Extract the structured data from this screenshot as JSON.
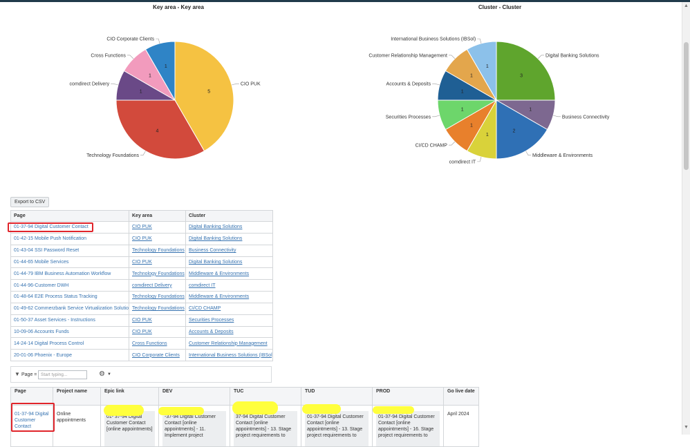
{
  "chart_data": [
    {
      "type": "pie",
      "title": "Key area - Key area",
      "categories": [
        "CIO PUK",
        "Technology Foundations",
        "comdirect Delivery",
        "Cross Functions",
        "CIO Corporate Clients"
      ],
      "values": [
        5,
        4,
        1,
        1,
        1
      ],
      "colors": [
        "#f5c242",
        "#d24a3c",
        "#6a4987",
        "#f29bbd",
        "#2f84c6"
      ]
    },
    {
      "type": "pie",
      "title": "Cluster - Cluster",
      "categories": [
        "Digital Banking Solutions",
        "Business Connectivity",
        "Middleware & Environments",
        "comdirect IT",
        "CI/CD CHAMP",
        "Securities Processes",
        "Accounts & Deposits",
        "Customer Relationship Management",
        "International Business Solutions (IBSol)"
      ],
      "values": [
        3,
        1,
        2,
        1,
        1,
        1,
        1,
        1,
        1
      ],
      "colors": [
        "#5fa52d",
        "#7d6890",
        "#2f70b5",
        "#d9d23a",
        "#e8802c",
        "#6dd66b",
        "#1f5f94",
        "#e3a64c",
        "#8cc1ea"
      ]
    }
  ],
  "export_label": "Export to CSV",
  "summary_table": {
    "headers": [
      "Page",
      "Key area",
      "Cluster"
    ],
    "rows": [
      [
        "01-37-94 Digital Customer Contact",
        "CIO PUK",
        "Digital Banking Solutions"
      ],
      [
        "01-42-15 Mobile Push Notification",
        "CIO PUK",
        "Digital Banking Solutions"
      ],
      [
        "01-43-04 SSI Password Reset",
        "Technology Foundations",
        "Business Connectivity"
      ],
      [
        "01-44-65 Mobile Services",
        "CIO PUK",
        "Digital Banking Solutions"
      ],
      [
        "01-44-79 IBM Business Automation Workflow",
        "Technology Foundations",
        "Middleware & Environments"
      ],
      [
        "01-44-96-Customer DWH",
        "comdirect Delivery",
        "comdirect IT"
      ],
      [
        "01-48-64 E2E Process Status Tracking",
        "Technology Foundations",
        "Middleware & Environments"
      ],
      [
        "01-49-62 Commerzbank Service Virtualization Solution",
        "Technology Foundations",
        "CI/CD CHAMP"
      ],
      [
        "01-50-37 Asset Services - Instructions",
        "CIO PUK",
        "Securities Processes"
      ],
      [
        "10-09-06 Accounts Funds",
        "CIO PUK",
        "Accounts & Deposits"
      ],
      [
        "14-24-14 Digital Process Control",
        "Cross Functions",
        "Customer Relationship Management"
      ],
      [
        "20-01-06 Phoenix - Europe",
        "CIO Corporate Clients",
        "International Business Solutions (IBSol)"
      ]
    ]
  },
  "filter": {
    "label": "Page =",
    "placeholder": "Start typing..."
  },
  "detail_table": {
    "headers": [
      "Page",
      "Project name",
      "Epic link",
      "DEV",
      "TUC",
      "TUD",
      "PROD",
      "Go live date"
    ],
    "row": [
      "01-37-94 Digital Customer Contact",
      "Online appointments",
      "01- 37-94 Digital Customer Contact [online appointments]",
      "-37-94 Digital Customer Contact [online appointments] - 11. Implement project",
      "37-94 Digital Customer Contact [online appointments] - 13. Stage project requirements to",
      "01-37-94 Digital Customer Contact [online appointments] - 13. Stage project requirements to",
      "01-37-94 Digital Customer Contact [online appointments] - 16. Stage project requirements to",
      "April 2024"
    ]
  }
}
